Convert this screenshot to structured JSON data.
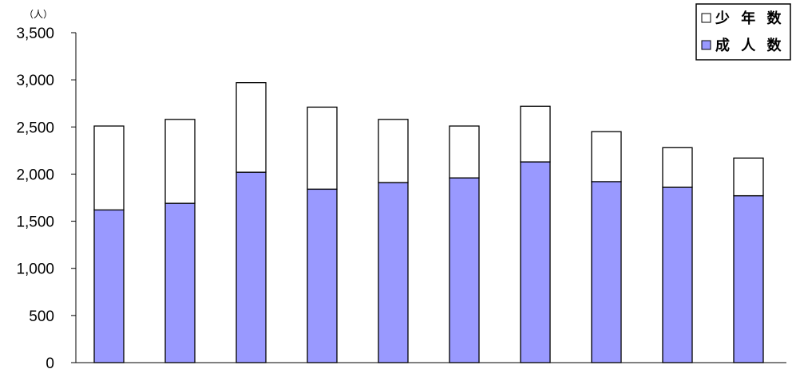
{
  "chart_data": {
    "type": "bar",
    "stacked": true,
    "title": "",
    "xlabel": "",
    "ylabel": "",
    "y_unit": "（人）",
    "ylim": [
      0,
      3500
    ],
    "y_ticks": [
      0,
      500,
      1000,
      1500,
      2000,
      2500,
      3000,
      3500
    ],
    "y_tick_labels": [
      "0",
      "500",
      "1,000",
      "1,500",
      "2,000",
      "2,500",
      "3,000",
      "3,500"
    ],
    "categories": [
      "",
      "",
      "",
      "",
      "",
      "",
      "",
      "",
      "",
      ""
    ],
    "series": [
      {
        "name": "成人数",
        "color": "#9999ff",
        "values": [
          1620,
          1690,
          2020,
          1840,
          1910,
          1960,
          2130,
          1920,
          1860,
          1770
        ]
      },
      {
        "name": "少年数",
        "color": "#ffffff",
        "values": [
          890,
          890,
          950,
          870,
          670,
          550,
          590,
          530,
          420,
          400
        ]
      }
    ],
    "legend": {
      "position": "top-right",
      "entries": [
        {
          "label": "少 年 数",
          "color": "#ffffff"
        },
        {
          "label": "成 人 数",
          "color": "#9999ff"
        }
      ]
    },
    "grid": false
  }
}
